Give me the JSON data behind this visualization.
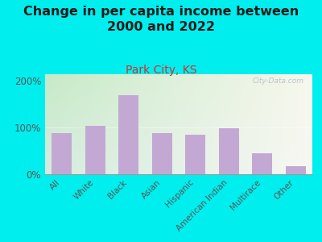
{
  "title": "Change in per capita income between\n2000 and 2022",
  "subtitle": "Park City, KS",
  "categories": [
    "All",
    "White",
    "Black",
    "Asian",
    "Hispanic",
    "American Indian",
    "Multirace",
    "Other"
  ],
  "values": [
    88,
    103,
    170,
    88,
    84,
    99,
    45,
    17
  ],
  "bar_color": "#c4a8d4",
  "background_outer": "#00eeee",
  "title_color": "#1a1a1a",
  "subtitle_color": "#cc3333",
  "axis_text_color": "#555555",
  "ylim": [
    0,
    215
  ],
  "yticks": [
    0,
    100,
    200
  ],
  "ytick_labels": [
    "0%",
    "100%",
    "200%"
  ],
  "watermark": "City-Data.com",
  "title_fontsize": 11.5,
  "subtitle_fontsize": 10,
  "tick_fontsize": 7.5
}
